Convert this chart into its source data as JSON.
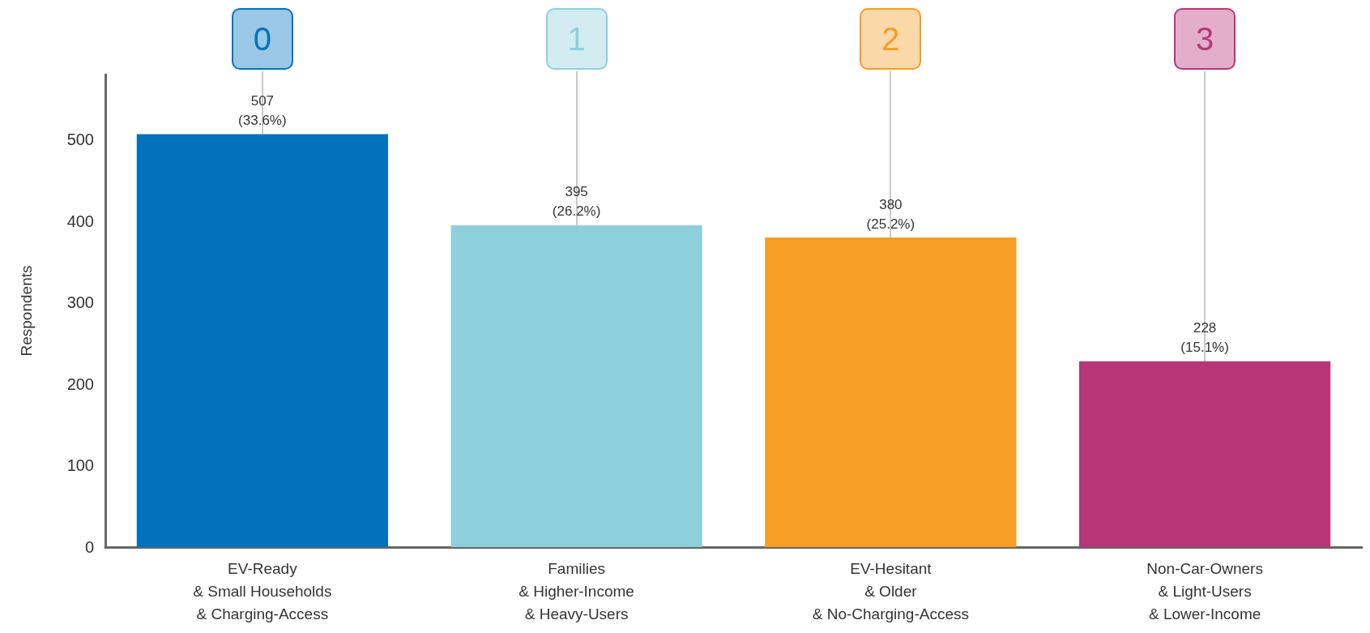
{
  "chart_data": {
    "type": "bar",
    "ylabel": "Respondents",
    "categories": [
      "EV-Ready\n& Small Households\n& Charging-Access",
      "Families\n& Higher-Income\n& Heavy-Users",
      "EV-Hesitant\n& Older\n& No-Charging-Access",
      "Non-Car-Owners\n& Light-Users\n& Lower-Income"
    ],
    "values": [
      507,
      395,
      380,
      228
    ],
    "colors": [
      "#0173bd",
      "#8ecfdc",
      "#f59d25",
      "#b83578"
    ],
    "value_labels": [
      "507\n(33.6%)",
      "395\n(26.2%)",
      "380\n(25.2%)",
      "228\n(15.1%)"
    ],
    "ylim": [
      0,
      580
    ],
    "yticks": [
      0,
      100,
      200,
      300,
      400,
      500
    ],
    "grid": false,
    "annotations": [
      "0",
      "1",
      "2",
      "3"
    ]
  }
}
